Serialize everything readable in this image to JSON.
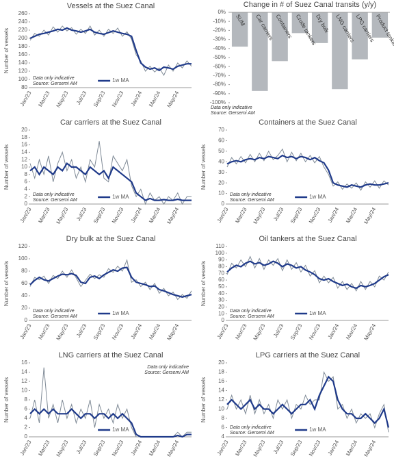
{
  "chart_data": [
    {
      "type": "line",
      "title": "Vessels at the Suez Canal",
      "ylabel": "Number of vessels",
      "notes": [
        "Data only indicative",
        "Source: Gersemi AM"
      ],
      "categories": [
        "Jan/23",
        null,
        null,
        null,
        "Mar/23",
        null,
        null,
        null,
        "May/23",
        null,
        null,
        null,
        "Jul/23",
        null,
        null,
        null,
        "Sep/23",
        null,
        null,
        null,
        "Nov/23",
        null,
        null,
        null,
        "Jan/24",
        null,
        null,
        null,
        "Mar/24",
        null,
        null,
        null,
        "May/24",
        null,
        null,
        null
      ],
      "series": [
        {
          "color": "#7f8a96",
          "values": [
            195,
            212,
            205,
            220,
            208,
            228,
            215,
            230,
            218,
            226,
            210,
            222,
            212,
            230,
            208,
            220,
            205,
            222,
            212,
            225,
            205,
            216,
            198,
            160,
            145,
            120,
            132,
            118,
            128,
            110,
            135,
            120,
            140,
            128,
            145,
            132
          ]
        },
        {
          "name": "1w MA",
          "color": "#1f3a8a",
          "values": [
            200,
            205,
            210,
            212,
            215,
            218,
            222,
            220,
            225,
            220,
            218,
            215,
            218,
            222,
            215,
            212,
            210,
            214,
            218,
            215,
            212,
            210,
            205,
            170,
            140,
            130,
            125,
            128,
            122,
            130,
            128,
            125,
            132,
            135,
            138,
            138
          ]
        }
      ],
      "ylim": [
        80,
        260
      ],
      "yticks": [
        80,
        100,
        120,
        140,
        160,
        180,
        200,
        220,
        240,
        260
      ]
    },
    {
      "type": "bar",
      "title": "Change in # of Suez Canal transits (y/y)",
      "notes": [
        "Data only indicative",
        "Source: Gersemi AM"
      ],
      "categories": [
        "SUM",
        "Car carriers",
        "Containers",
        "Crude tankers",
        "Dry bulk",
        "LNG carriers",
        "LPG carriers",
        "Product tankers"
      ],
      "values": [
        -38,
        -87,
        -54,
        -23,
        -34,
        -85,
        -52,
        -28
      ],
      "color": "#b4b8bd",
      "ylim": [
        -100,
        0
      ],
      "yticks": [
        {
          "value": 0,
          "label": "0%"
        },
        {
          "value": -10,
          "label": "-10%"
        },
        {
          "value": -20,
          "label": "-20%"
        },
        {
          "value": -30,
          "label": "-30%"
        },
        {
          "value": -40,
          "label": "-40%"
        },
        {
          "value": -50,
          "label": "-50%"
        },
        {
          "value": -60,
          "label": "-60%"
        },
        {
          "value": -70,
          "label": "-70%"
        },
        {
          "value": -80,
          "label": "-80%"
        },
        {
          "value": -90,
          "label": "-90%"
        },
        {
          "value": -100,
          "label": "-100%"
        }
      ]
    },
    {
      "type": "line",
      "title": "Car carriers at the Suez Canal",
      "ylabel": "Number of vessels",
      "notes": [
        "Data only indicative",
        "Source: Gersemi AM"
      ],
      "categories": [
        "Jan/23",
        null,
        null,
        null,
        "Mar/23",
        null,
        null,
        null,
        "May/23",
        null,
        null,
        null,
        "Jul/23",
        null,
        null,
        null,
        "Sep/23",
        null,
        null,
        null,
        "Nov/23",
        null,
        null,
        null,
        "Jan/24",
        null,
        null,
        null,
        "Mar/24",
        null,
        null,
        null,
        "May/24",
        null,
        null,
        null
      ],
      "series": [
        {
          "color": "#7f8a96",
          "values": [
            11,
            7,
            12,
            8,
            13,
            6,
            11,
            14,
            9,
            12,
            7,
            10,
            6,
            12,
            10,
            17,
            7,
            6,
            13,
            11,
            9,
            12,
            5,
            2,
            4,
            0,
            3,
            1,
            2,
            0,
            2,
            1,
            3,
            0,
            2,
            2
          ]
        },
        {
          "name": "1w MA",
          "color": "#1f3a8a",
          "values": [
            9,
            10,
            8,
            10,
            9,
            8,
            10,
            9,
            11,
            10,
            10,
            9,
            8,
            10,
            9,
            8,
            9,
            7,
            10,
            9,
            8,
            7,
            6,
            3,
            2,
            1,
            1.5,
            1,
            1,
            1.2,
            1,
            1,
            1.3,
            1,
            1,
            1
          ]
        }
      ],
      "ylim": [
        0,
        20
      ],
      "yticks": [
        0,
        2,
        4,
        6,
        8,
        10,
        12,
        14,
        16,
        18,
        20
      ]
    },
    {
      "type": "line",
      "title": "Containers at the Suez Canal",
      "ylabel": "Number of vessels",
      "notes": [
        "Data only indicative",
        "Source: Gersemi AM"
      ],
      "categories": [
        "Jan/23",
        null,
        null,
        null,
        "Mar/23",
        null,
        null,
        null,
        "May/23",
        null,
        null,
        null,
        "Jul/23",
        null,
        null,
        null,
        "Sep/23",
        null,
        null,
        null,
        "Nov/23",
        null,
        null,
        null,
        "Jan/24",
        null,
        null,
        null,
        "Mar/24",
        null,
        null,
        null,
        "May/24",
        null,
        null,
        null
      ],
      "series": [
        {
          "color": "#7f8a96",
          "values": [
            35,
            44,
            38,
            45,
            39,
            47,
            40,
            48,
            41,
            50,
            42,
            46,
            52,
            40,
            49,
            41,
            48,
            40,
            46,
            39,
            45,
            35,
            28,
            17,
            21,
            14,
            19,
            15,
            20,
            13,
            21,
            16,
            22,
            15,
            22,
            18
          ]
        },
        {
          "name": "1w MA",
          "color": "#1f3a8a",
          "values": [
            38,
            40,
            41,
            40,
            42,
            43,
            42,
            44,
            43,
            45,
            44,
            43,
            46,
            44,
            45,
            43,
            45,
            44,
            42,
            44,
            41,
            39,
            32,
            20,
            18,
            17,
            16,
            18,
            17,
            16,
            18,
            19,
            18,
            18,
            19,
            20
          ]
        }
      ],
      "ylim": [
        0,
        70
      ],
      "yticks": [
        0,
        10,
        20,
        30,
        40,
        50,
        60,
        70
      ]
    },
    {
      "type": "line",
      "title": "Dry bulk at the Suez Canal",
      "ylabel": "Number of vessels",
      "notes": [
        "Data only indicative",
        "Source: Gersemi AM"
      ],
      "categories": [
        "Jan/23",
        null,
        null,
        null,
        "Mar/23",
        null,
        null,
        null,
        "May/23",
        null,
        null,
        null,
        "Jul/23",
        null,
        null,
        null,
        "Sep/23",
        null,
        null,
        null,
        "Nov/23",
        null,
        null,
        null,
        "Jan/24",
        null,
        null,
        null,
        "Mar/24",
        null,
        null,
        null,
        "May/24",
        null,
        null,
        null
      ],
      "series": [
        {
          "color": "#7f8a96",
          "values": [
            55,
            70,
            66,
            72,
            60,
            73,
            68,
            80,
            70,
            82,
            69,
            55,
            65,
            75,
            68,
            74,
            70,
            84,
            78,
            88,
            80,
            98,
            62,
            66,
            55,
            62,
            50,
            60,
            44,
            52,
            40,
            46,
            34,
            42,
            36,
            48
          ]
        },
        {
          "name": "1w MA",
          "color": "#1f3a8a",
          "values": [
            58,
            65,
            70,
            66,
            64,
            68,
            72,
            75,
            74,
            76,
            73,
            62,
            60,
            70,
            72,
            68,
            74,
            78,
            82,
            80,
            85,
            86,
            70,
            62,
            60,
            58,
            55,
            56,
            50,
            48,
            45,
            42,
            40,
            38,
            40,
            42
          ]
        }
      ],
      "ylim": [
        0,
        120
      ],
      "yticks": [
        0,
        20,
        40,
        60,
        80,
        100,
        120
      ]
    },
    {
      "type": "line",
      "title": "Oil tankers at the Suez Canal",
      "ylabel": "Number of vessels",
      "notes": [
        "Data only indicative",
        "Source: Gersemi AM"
      ],
      "categories": [
        "Jan/23",
        null,
        null,
        null,
        "Mar/23",
        null,
        null,
        null,
        "May/23",
        null,
        null,
        null,
        "Jul/23",
        null,
        null,
        null,
        "Sep/23",
        null,
        null,
        null,
        "Nov/23",
        null,
        null,
        null,
        "Jan/24",
        null,
        null,
        null,
        "Mar/24",
        null,
        null,
        null,
        "May/24",
        null,
        null,
        null
      ],
      "series": [
        {
          "color": "#7f8a96",
          "values": [
            68,
            85,
            78,
            90,
            80,
            95,
            78,
            92,
            76,
            90,
            82,
            92,
            74,
            90,
            76,
            86,
            72,
            82,
            66,
            74,
            56,
            66,
            56,
            64,
            48,
            58,
            46,
            55,
            44,
            58,
            46,
            58,
            50,
            66,
            60,
            72
          ]
        },
        {
          "name": "1w MA",
          "color": "#1f3a8a",
          "values": [
            72,
            78,
            82,
            80,
            85,
            88,
            84,
            86,
            82,
            84,
            88,
            85,
            80,
            84,
            82,
            78,
            80,
            75,
            72,
            68,
            62,
            60,
            62,
            58,
            55,
            52,
            54,
            50,
            48,
            52,
            50,
            52,
            55,
            60,
            65,
            68
          ]
        }
      ],
      "ylim": [
        0,
        110
      ],
      "yticks": [
        0,
        10,
        20,
        30,
        40,
        50,
        60,
        70,
        80,
        90,
        100,
        110
      ]
    },
    {
      "type": "line",
      "title": "LNG carriers at the Suez Canal",
      "ylabel": "Number of vessels",
      "notes": [
        "Data only indicative",
        "Source: Gersemi AM"
      ],
      "categories": [
        "Jan/23",
        null,
        null,
        null,
        "Mar/23",
        null,
        null,
        null,
        "May/23",
        null,
        null,
        null,
        "Jul/23",
        null,
        null,
        null,
        "Sep/23",
        null,
        null,
        null,
        "Nov/23",
        null,
        null,
        null,
        "Jan/24",
        null,
        null,
        null,
        "Mar/24",
        null,
        null,
        null,
        "May/24",
        null,
        null,
        null
      ],
      "series": [
        {
          "color": "#7f8a96",
          "values": [
            4,
            8,
            3,
            15,
            4,
            7,
            3,
            8,
            4,
            7,
            3,
            6,
            4,
            8,
            2,
            7,
            4,
            6,
            3,
            7,
            4,
            6,
            2,
            0,
            0,
            0,
            0,
            0,
            0,
            0,
            0,
            0,
            1,
            0,
            1,
            1
          ]
        },
        {
          "name": "1w MA",
          "color": "#1f3a8a",
          "values": [
            5,
            6,
            5,
            6,
            5,
            6,
            5,
            5,
            5,
            6,
            5,
            4,
            5,
            5,
            4,
            5,
            5,
            4,
            5,
            4,
            5,
            4,
            3,
            0.5,
            0,
            0,
            0,
            0,
            0,
            0,
            0,
            0,
            0.3,
            0,
            0.5,
            0.5
          ]
        }
      ],
      "ylim": [
        0,
        16
      ],
      "yticks": [
        0,
        2,
        4,
        6,
        8,
        10,
        12,
        14,
        16
      ]
    },
    {
      "type": "line",
      "title": "LPG carriers at the Suez Canal",
      "ylabel": "Number of vessels",
      "notes": [
        "Data only indicative",
        "Source: Gersemi AM"
      ],
      "categories": [
        "Jan/23",
        null,
        null,
        null,
        "Mar/23",
        null,
        null,
        null,
        "May/23",
        null,
        null,
        null,
        "Jul/23",
        null,
        null,
        null,
        "Sep/23",
        null,
        null,
        null,
        "Nov/23",
        null,
        null,
        null,
        "Jan/24",
        null,
        null,
        null,
        "Mar/24",
        null,
        null,
        null,
        "May/24",
        null,
        null,
        null
      ],
      "series": [
        {
          "color": "#7f8a96",
          "values": [
            10,
            13,
            10,
            12,
            9,
            13,
            9,
            12,
            9,
            11,
            8,
            12,
            10,
            12,
            8,
            11,
            10,
            13,
            11,
            12,
            12,
            18,
            16,
            17,
            10,
            11,
            8,
            10,
            7,
            9,
            8,
            9,
            6,
            9,
            11,
            5
          ]
        },
        {
          "name": "1w MA",
          "color": "#1f3a8a",
          "values": [
            11,
            12,
            11,
            10,
            11,
            12,
            10,
            11,
            10,
            10,
            9,
            10,
            11,
            10,
            9,
            10,
            11,
            11,
            12,
            10,
            13,
            15,
            17,
            16,
            12,
            10,
            9,
            9,
            8,
            8,
            9,
            8,
            7,
            8,
            10,
            6
          ]
        }
      ],
      "ylim": [
        4,
        20
      ],
      "yticks": [
        4,
        6,
        8,
        10,
        12,
        14,
        16,
        18,
        20
      ]
    }
  ]
}
